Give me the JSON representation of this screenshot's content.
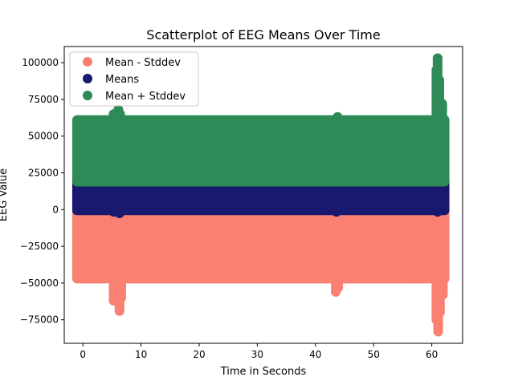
{
  "chart_data": {
    "type": "scatter",
    "title": "Scatterplot of EEG Means Over Time",
    "xlabel": "Time in Seconds",
    "ylabel": "EEG Value",
    "xlim": [
      -3.2,
      65.3
    ],
    "ylim": [
      -91000,
      111000
    ],
    "x_ticks": [
      0,
      10,
      20,
      30,
      40,
      50,
      60
    ],
    "y_ticks": [
      -75000,
      -50000,
      -25000,
      0,
      25000,
      50000,
      75000,
      100000
    ],
    "grid": false,
    "legend_position": "top-left",
    "series": [
      {
        "name": "Mean - Stddev",
        "color": "#fa8072",
        "range": [
          -1,
          62.2
        ],
        "base": [
          -47000,
          4000
        ],
        "excursions": [
          {
            "x": 5.3,
            "y": -62000
          },
          {
            "x": 5.8,
            "y": -58000
          },
          {
            "x": 6.3,
            "y": -69000
          },
          {
            "x": 6.6,
            "y": -60000
          },
          {
            "x": 43.5,
            "y": -56000
          },
          {
            "x": 43.9,
            "y": -53000
          },
          {
            "x": 60.8,
            "y": -75000
          },
          {
            "x": 61.1,
            "y": -83000
          },
          {
            "x": 61.4,
            "y": -70000
          },
          {
            "x": 61.9,
            "y": -58000
          }
        ]
      },
      {
        "name": "Means",
        "color": "#191970",
        "range": [
          -1,
          62.2
        ],
        "base": [
          -500,
          21000
        ],
        "excursions": [
          {
            "x": 5.3,
            "y": -1500
          },
          {
            "x": 6.3,
            "y": -2500
          },
          {
            "x": 43.6,
            "y": -1500
          },
          {
            "x": 61.0,
            "y": -1500
          },
          {
            "x": 61.4,
            "y": 23000
          }
        ]
      },
      {
        "name": "Mean + Stddev",
        "color": "#2e8b57",
        "range": [
          -1,
          62.2
        ],
        "base": [
          19000,
          61000
        ],
        "excursions": [
          {
            "x": 5.3,
            "y": 65000
          },
          {
            "x": 6.1,
            "y": 68000
          },
          {
            "x": 6.4,
            "y": 65000
          },
          {
            "x": 43.8,
            "y": 63000
          },
          {
            "x": 60.8,
            "y": 95000
          },
          {
            "x": 61.0,
            "y": 103000
          },
          {
            "x": 61.3,
            "y": 88000
          },
          {
            "x": 61.8,
            "y": 72000
          }
        ]
      }
    ]
  }
}
